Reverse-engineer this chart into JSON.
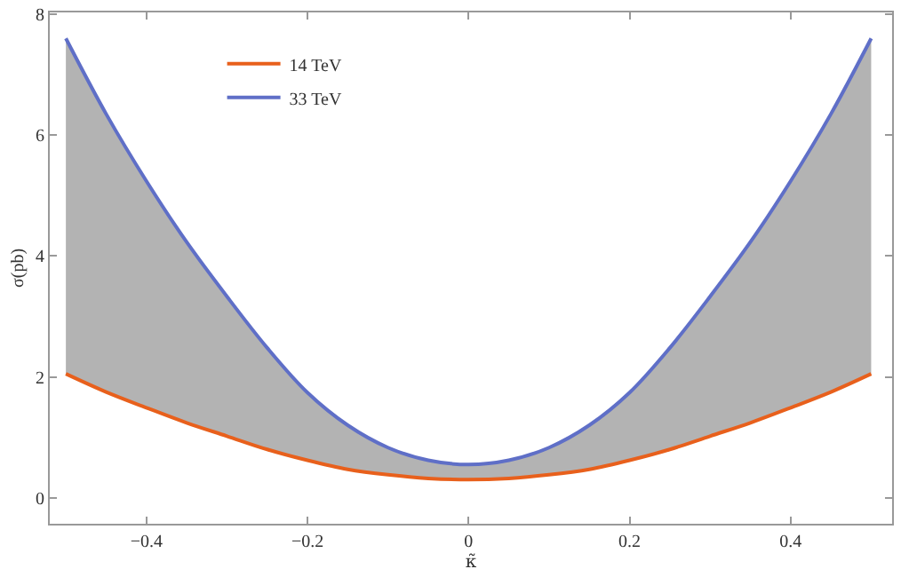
{
  "chart_data": {
    "type": "line",
    "xlabel": "κ̃",
    "ylabel": "σ(pb)",
    "x": [
      -0.5,
      -0.45,
      -0.4,
      -0.35,
      -0.3,
      -0.25,
      -0.2,
      -0.15,
      -0.1,
      -0.05,
      0,
      0.05,
      0.1,
      0.15,
      0.2,
      0.25,
      0.3,
      0.35,
      0.4,
      0.45,
      0.5
    ],
    "series": [
      {
        "name": "14 TeV",
        "color": "#e8601c",
        "values": [
          2.05,
          1.75,
          1.49,
          1.24,
          1.02,
          0.8,
          0.62,
          0.47,
          0.38,
          0.32,
          0.3,
          0.32,
          0.38,
          0.47,
          0.62,
          0.8,
          1.02,
          1.24,
          1.49,
          1.75,
          2.05
        ]
      },
      {
        "name": "33 TeV",
        "color": "#5f6fc7",
        "values": [
          7.6,
          6.35,
          5.24,
          4.23,
          3.33,
          2.48,
          1.74,
          1.2,
          0.83,
          0.62,
          0.55,
          0.62,
          0.83,
          1.2,
          1.74,
          2.48,
          3.33,
          4.23,
          5.24,
          6.35,
          7.6
        ],
        "lower": [
          2.05,
          1.75,
          1.49,
          1.24,
          1.02,
          0.8,
          0.62,
          0.47,
          0.38,
          0.32,
          0.3,
          0.32,
          0.38,
          0.47,
          0.62,
          0.8,
          1.02,
          1.24,
          1.49,
          1.75,
          2.05
        ],
        "upper": [
          7.6,
          6.35,
          5.24,
          4.23,
          3.33,
          2.48,
          1.74,
          1.2,
          0.83,
          0.62,
          0.55,
          0.62,
          0.83,
          1.2,
          1.74,
          2.48,
          3.33,
          4.23,
          5.24,
          6.35,
          7.6
        ]
      }
    ],
    "xlim": [
      -0.52,
      0.526
    ],
    "ylim": [
      -0.43,
      8.03
    ],
    "xticks": [
      -0.4,
      -0.2,
      0.0,
      0.2,
      0.4
    ],
    "yticks": [
      0,
      2,
      4,
      6,
      8
    ],
    "legend": "top left"
  }
}
